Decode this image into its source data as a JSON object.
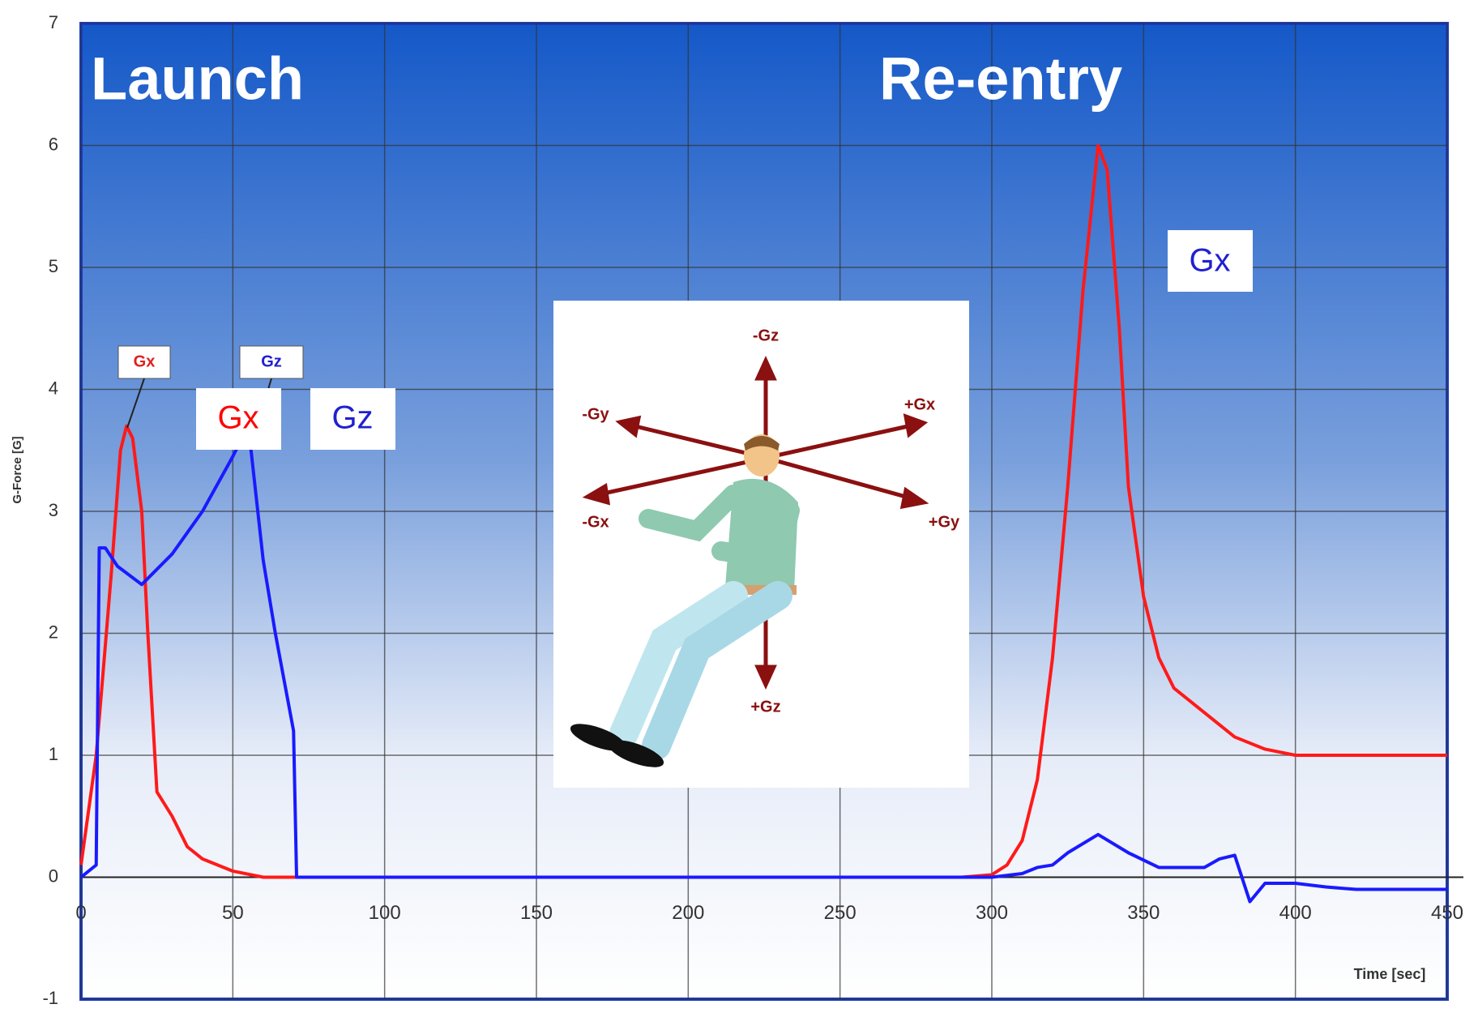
{
  "chart_data": {
    "type": "line",
    "phase_labels": [
      "Launch",
      "Re-entry"
    ],
    "y_label": "G-Force [G]",
    "x_label": "Time [sec]",
    "xlim": [
      0,
      450
    ],
    "xticks": [
      0,
      50,
      100,
      150,
      200,
      250,
      300,
      350,
      400,
      450
    ],
    "ylim": [
      -1,
      7
    ],
    "yticks": [
      -1,
      0,
      1,
      2,
      3,
      4,
      5,
      6,
      7
    ],
    "grid": true,
    "series": [
      {
        "name": "Gx",
        "color": "#ff1a1a",
        "x": [
          0,
          5,
          10,
          13,
          15,
          17,
          20,
          22,
          25,
          30,
          35,
          40,
          50,
          60,
          100,
          200,
          290,
          300,
          305,
          310,
          315,
          320,
          325,
          330,
          335,
          338,
          342,
          345,
          350,
          355,
          360,
          370,
          380,
          390,
          400,
          450
        ],
        "values": [
          0.1,
          1,
          2.5,
          3.5,
          3.7,
          3.6,
          3,
          2,
          0.7,
          0.5,
          0.25,
          0.15,
          0.05,
          0,
          0,
          0,
          0,
          0.02,
          0.1,
          0.3,
          0.8,
          1.8,
          3.2,
          4.8,
          6.0,
          5.8,
          4.5,
          3.2,
          2.3,
          1.8,
          1.55,
          1.35,
          1.15,
          1.05,
          1.0,
          1.0
        ]
      },
      {
        "name": "Gz",
        "color": "#1a1aff",
        "x": [
          0,
          5,
          6,
          8,
          12,
          20,
          30,
          40,
          50,
          55,
          56,
          60,
          64,
          70,
          71,
          100,
          300,
          310,
          315,
          320,
          325,
          335,
          345,
          355,
          370,
          375,
          380,
          385,
          390,
          400,
          410,
          420,
          450
        ],
        "values": [
          0,
          0.1,
          2.7,
          2.7,
          2.55,
          2.4,
          2.65,
          3.0,
          3.45,
          3.7,
          3.5,
          2.6,
          2,
          1.2,
          0,
          0,
          0,
          0.03,
          0.08,
          0.1,
          0.2,
          0.35,
          0.2,
          0.08,
          0.08,
          0.15,
          0.18,
          -0.2,
          -0.05,
          -0.05,
          -0.08,
          -0.1,
          -0.1
        ]
      }
    ],
    "annotations": [
      "Gx",
      "Gz",
      "Gx",
      "Gz",
      "Gx"
    ],
    "figure_labels": [
      "-Gz",
      "+Gx",
      "-Gy",
      "-Gx",
      "+Gy",
      "+Gz"
    ]
  }
}
